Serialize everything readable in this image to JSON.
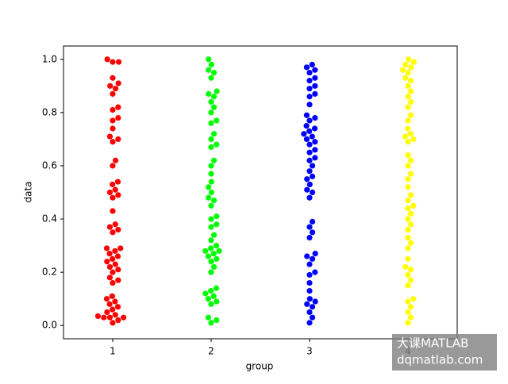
{
  "chart_data": {
    "type": "swarm",
    "x_label": "group",
    "y_label": "data",
    "categories": [
      "1",
      "2",
      "3",
      "4"
    ],
    "colors": [
      "#ff0000",
      "#00ff00",
      "#0000ff",
      "#ffff00"
    ],
    "values": [
      [
        0.01,
        0.02,
        0.03,
        0.03,
        0.03,
        0.035,
        0.04,
        0.05,
        0.06,
        0.07,
        0.08,
        0.09,
        0.1,
        0.11,
        0.16,
        0.17,
        0.18,
        0.2,
        0.21,
        0.22,
        0.23,
        0.24,
        0.25,
        0.26,
        0.27,
        0.28,
        0.29,
        0.29,
        0.35,
        0.36,
        0.37,
        0.38,
        0.43,
        0.48,
        0.49,
        0.5,
        0.51,
        0.53,
        0.54,
        0.6,
        0.62,
        0.69,
        0.7,
        0.71,
        0.74,
        0.77,
        0.78,
        0.81,
        0.82,
        0.87,
        0.89,
        0.9,
        0.91,
        0.93,
        0.99,
        0.99,
        1.0
      ],
      [
        0.01,
        0.02,
        0.03,
        0.08,
        0.09,
        0.1,
        0.11,
        0.12,
        0.13,
        0.14,
        0.2,
        0.22,
        0.24,
        0.25,
        0.26,
        0.27,
        0.28,
        0.28,
        0.29,
        0.3,
        0.32,
        0.34,
        0.37,
        0.38,
        0.4,
        0.41,
        0.45,
        0.47,
        0.48,
        0.5,
        0.52,
        0.54,
        0.57,
        0.6,
        0.62,
        0.67,
        0.68,
        0.7,
        0.72,
        0.76,
        0.77,
        0.8,
        0.82,
        0.84,
        0.86,
        0.87,
        0.88,
        0.93,
        0.95,
        0.96,
        0.98,
        1.0
      ],
      [
        0.01,
        0.03,
        0.05,
        0.07,
        0.08,
        0.09,
        0.1,
        0.13,
        0.16,
        0.19,
        0.2,
        0.23,
        0.25,
        0.26,
        0.27,
        0.33,
        0.35,
        0.37,
        0.39,
        0.48,
        0.5,
        0.51,
        0.53,
        0.55,
        0.56,
        0.58,
        0.6,
        0.62,
        0.63,
        0.65,
        0.66,
        0.68,
        0.69,
        0.7,
        0.71,
        0.72,
        0.73,
        0.74,
        0.75,
        0.77,
        0.78,
        0.79,
        0.83,
        0.86,
        0.87,
        0.89,
        0.9,
        0.92,
        0.93,
        0.95,
        0.96,
        0.97,
        0.98
      ],
      [
        0.01,
        0.03,
        0.05,
        0.07,
        0.09,
        0.1,
        0.15,
        0.17,
        0.19,
        0.21,
        0.22,
        0.25,
        0.29,
        0.31,
        0.33,
        0.36,
        0.38,
        0.4,
        0.42,
        0.44,
        0.45,
        0.47,
        0.49,
        0.52,
        0.55,
        0.57,
        0.6,
        0.62,
        0.64,
        0.69,
        0.7,
        0.71,
        0.72,
        0.74,
        0.77,
        0.79,
        0.82,
        0.84,
        0.86,
        0.88,
        0.9,
        0.92,
        0.93,
        0.95,
        0.96,
        0.97,
        0.98,
        0.99,
        1.0
      ]
    ],
    "ylim": [
      -0.05,
      1.05
    ],
    "yticks": [
      {
        "value": 0,
        "label": "0.0"
      },
      {
        "value": 0.2,
        "label": "0.2"
      },
      {
        "value": 0.4,
        "label": "0.4"
      },
      {
        "value": 0.6,
        "label": "0.6"
      },
      {
        "value": 0.8,
        "label": "0.8"
      },
      {
        "value": 1,
        "label": "1.0"
      }
    ],
    "watermark": [
      "大课MATLAB",
      "dqmatlab.com"
    ]
  }
}
